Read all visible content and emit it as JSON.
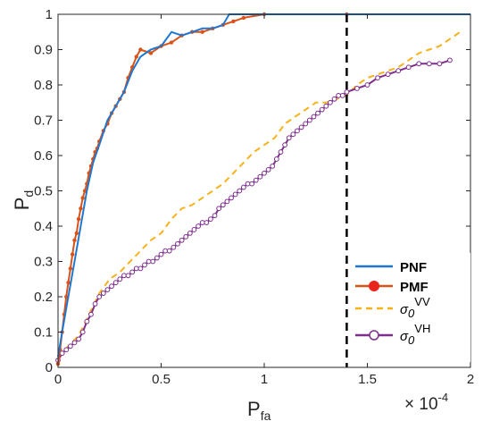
{
  "chart_data": {
    "type": "line",
    "xlabel_main": "P",
    "xlabel_sub": "fa",
    "ylabel_main": "P",
    "ylabel_sub": "d",
    "x_multiplier": {
      "base": "× 10",
      "exponent": "-4"
    },
    "xlim": [
      0,
      2
    ],
    "ylim": [
      0,
      1
    ],
    "xticks": [
      0,
      0.5,
      1,
      1.5,
      2
    ],
    "xtick_labels": [
      "0",
      "0.5",
      "1",
      "1.5",
      "2"
    ],
    "yticks": [
      0,
      0.1,
      0.2,
      0.3,
      0.4,
      0.5,
      0.6,
      0.7,
      0.8,
      0.9,
      1
    ],
    "ytick_labels": [
      "0",
      "0.1",
      "0.2",
      "0.3",
      "0.4",
      "0.5",
      "0.6",
      "0.7",
      "0.8",
      "0.9",
      "1"
    ],
    "grid": false,
    "legend_position": "bottom-right",
    "threshold_line": {
      "x": 1.4,
      "color": "#000000",
      "style": "dashed"
    },
    "series": [
      {
        "name": "PNF",
        "legend_main": "PNF",
        "legend_sup": "",
        "color": "#1f77d0",
        "style": "solid",
        "marker": "none",
        "x": [
          0,
          0.02,
          0.05,
          0.08,
          0.11,
          0.14,
          0.17,
          0.2,
          0.24,
          0.28,
          0.32,
          0.36,
          0.4,
          0.45,
          0.5,
          0.55,
          0.6,
          0.65,
          0.7,
          0.75,
          0.8,
          0.83,
          0.85,
          0.9,
          0.95,
          1.0,
          2.0
        ],
        "y": [
          0.03,
          0.1,
          0.2,
          0.3,
          0.4,
          0.5,
          0.58,
          0.63,
          0.7,
          0.74,
          0.78,
          0.84,
          0.88,
          0.9,
          0.91,
          0.95,
          0.94,
          0.95,
          0.96,
          0.96,
          0.97,
          1.0,
          1.0,
          1.0,
          1.0,
          1.0,
          1.0
        ]
      },
      {
        "name": "PMF",
        "legend_main": "PMF",
        "legend_sup": "",
        "color": "#d95319",
        "style": "solid",
        "marker": "filled",
        "x": [
          0,
          0.01,
          0.02,
          0.03,
          0.04,
          0.05,
          0.06,
          0.07,
          0.08,
          0.09,
          0.1,
          0.11,
          0.12,
          0.13,
          0.14,
          0.15,
          0.16,
          0.17,
          0.18,
          0.19,
          0.2,
          0.22,
          0.24,
          0.26,
          0.28,
          0.3,
          0.32,
          0.34,
          0.36,
          0.38,
          0.4,
          0.45,
          0.5,
          0.55,
          0.6,
          0.65,
          0.7,
          0.75,
          0.8,
          0.85,
          0.9,
          1.0,
          1.4
        ],
        "y": [
          0.01,
          0.05,
          0.1,
          0.15,
          0.2,
          0.24,
          0.28,
          0.32,
          0.36,
          0.38,
          0.42,
          0.45,
          0.48,
          0.5,
          0.52,
          0.55,
          0.57,
          0.59,
          0.61,
          0.62,
          0.64,
          0.67,
          0.69,
          0.72,
          0.74,
          0.76,
          0.78,
          0.82,
          0.85,
          0.88,
          0.9,
          0.89,
          0.91,
          0.92,
          0.94,
          0.95,
          0.95,
          0.96,
          0.97,
          0.98,
          0.99,
          1.0,
          1.0
        ]
      },
      {
        "name": "σ0VV",
        "legend_main": "σ",
        "legend_sub": "0",
        "legend_sup": "VV",
        "color": "#f5b21b",
        "style": "dashed",
        "marker": "none",
        "x": [
          0,
          0.05,
          0.1,
          0.15,
          0.2,
          0.25,
          0.3,
          0.35,
          0.4,
          0.45,
          0.5,
          0.55,
          0.6,
          0.65,
          0.7,
          0.75,
          0.8,
          0.85,
          0.9,
          0.95,
          1.0,
          1.05,
          1.1,
          1.15,
          1.2,
          1.25,
          1.3,
          1.35,
          1.4,
          1.45,
          1.5,
          1.55,
          1.6,
          1.65,
          1.7,
          1.75,
          1.8,
          1.85,
          1.9,
          1.95
        ],
        "y": [
          0.03,
          0.06,
          0.09,
          0.15,
          0.21,
          0.25,
          0.27,
          0.3,
          0.33,
          0.36,
          0.38,
          0.42,
          0.45,
          0.46,
          0.48,
          0.5,
          0.52,
          0.55,
          0.58,
          0.61,
          0.63,
          0.65,
          0.69,
          0.71,
          0.73,
          0.75,
          0.75,
          0.76,
          0.77,
          0.8,
          0.82,
          0.83,
          0.84,
          0.85,
          0.87,
          0.89,
          0.9,
          0.91,
          0.93,
          0.95
        ]
      },
      {
        "name": "σ0VH",
        "legend_main": "σ",
        "legend_sub": "0",
        "legend_sup": "VH",
        "color": "#7e2f8e",
        "style": "solid",
        "marker": "open",
        "x": [
          0,
          0.02,
          0.04,
          0.06,
          0.08,
          0.1,
          0.12,
          0.14,
          0.16,
          0.18,
          0.2,
          0.22,
          0.24,
          0.26,
          0.28,
          0.3,
          0.32,
          0.34,
          0.36,
          0.38,
          0.4,
          0.42,
          0.44,
          0.46,
          0.48,
          0.5,
          0.52,
          0.54,
          0.56,
          0.58,
          0.6,
          0.62,
          0.64,
          0.66,
          0.68,
          0.7,
          0.72,
          0.74,
          0.76,
          0.78,
          0.8,
          0.82,
          0.84,
          0.86,
          0.88,
          0.9,
          0.92,
          0.94,
          0.96,
          0.98,
          1.0,
          1.02,
          1.04,
          1.06,
          1.08,
          1.1,
          1.12,
          1.14,
          1.16,
          1.18,
          1.2,
          1.22,
          1.24,
          1.26,
          1.28,
          1.3,
          1.32,
          1.34,
          1.36,
          1.38,
          1.4,
          1.45,
          1.5,
          1.55,
          1.6,
          1.65,
          1.7,
          1.75,
          1.8,
          1.85,
          1.9
        ],
        "y": [
          0.02,
          0.04,
          0.05,
          0.06,
          0.07,
          0.08,
          0.1,
          0.13,
          0.15,
          0.18,
          0.2,
          0.21,
          0.22,
          0.23,
          0.24,
          0.25,
          0.26,
          0.26,
          0.27,
          0.28,
          0.28,
          0.29,
          0.3,
          0.3,
          0.31,
          0.32,
          0.33,
          0.33,
          0.34,
          0.35,
          0.36,
          0.37,
          0.38,
          0.39,
          0.4,
          0.41,
          0.41,
          0.42,
          0.43,
          0.45,
          0.46,
          0.47,
          0.48,
          0.49,
          0.5,
          0.51,
          0.52,
          0.52,
          0.53,
          0.54,
          0.55,
          0.56,
          0.57,
          0.59,
          0.61,
          0.63,
          0.65,
          0.66,
          0.67,
          0.68,
          0.69,
          0.7,
          0.71,
          0.72,
          0.73,
          0.74,
          0.75,
          0.76,
          0.77,
          0.77,
          0.78,
          0.79,
          0.8,
          0.82,
          0.83,
          0.84,
          0.85,
          0.86,
          0.86,
          0.86,
          0.87
        ]
      }
    ]
  }
}
